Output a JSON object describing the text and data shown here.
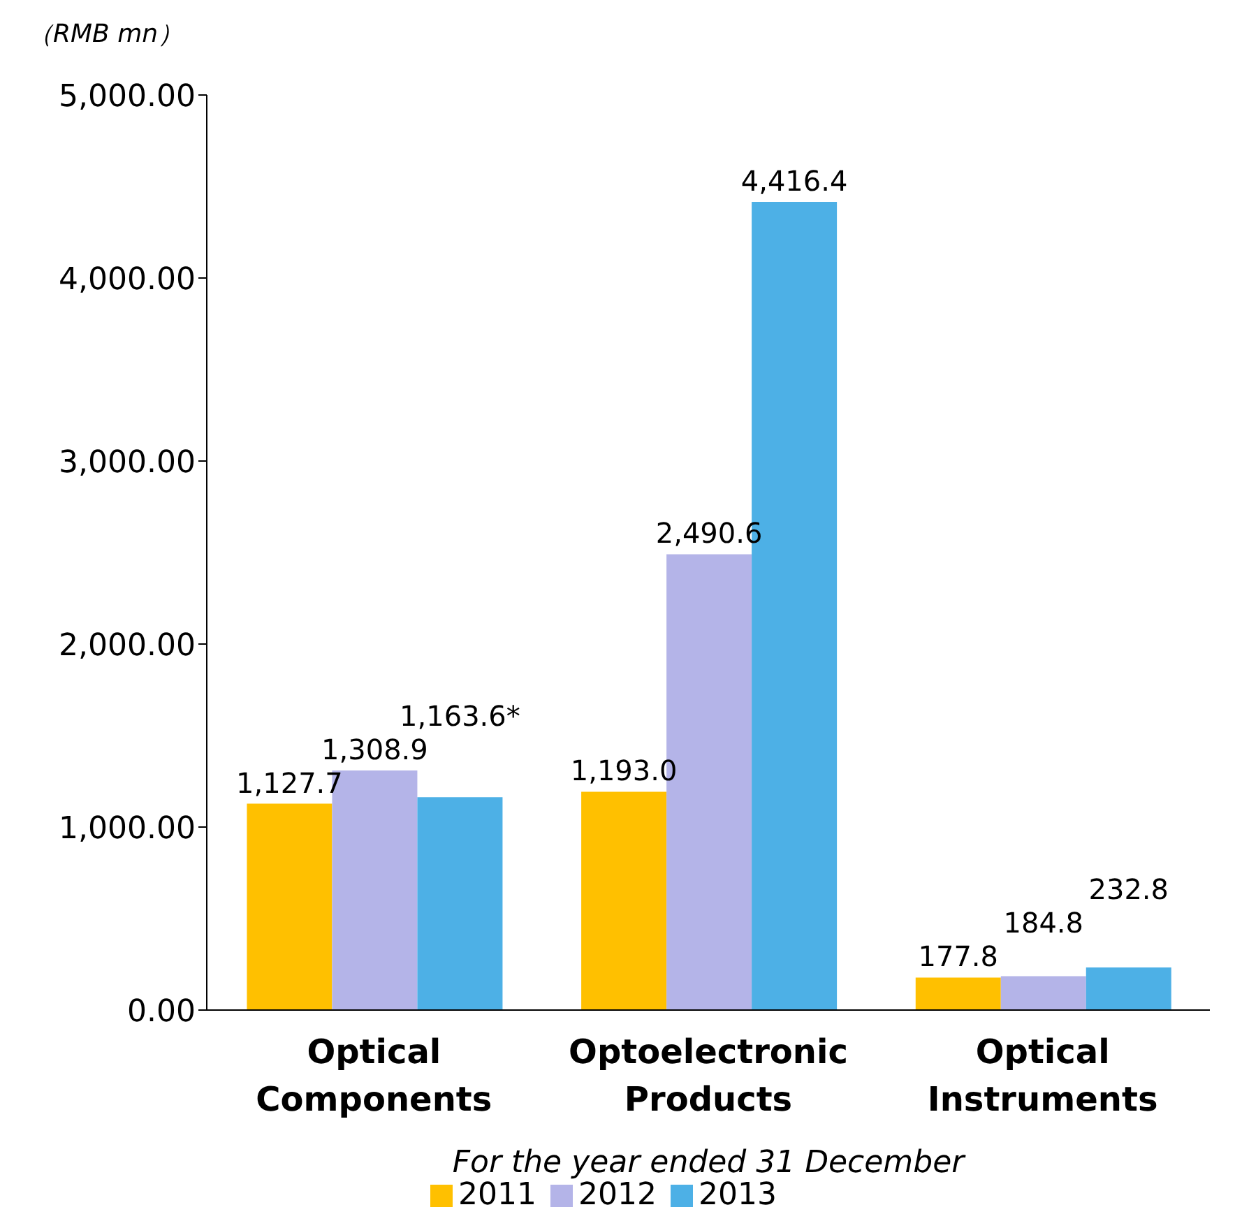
{
  "chart_data": {
    "type": "bar",
    "ylabel": "（RMB mn）",
    "xlabel": "For the year ended 31 December",
    "categories": [
      "Optical Components",
      "Optoelectronic Products",
      "Optical Instruments"
    ],
    "series": [
      {
        "name": "2011",
        "color": "#ffc000",
        "values": [
          1127.7,
          1193.0,
          177.8
        ],
        "value_labels": [
          "1,127.7",
          "1,193.0",
          "177.8"
        ]
      },
      {
        "name": "2012",
        "color": "#b4b4e8",
        "values": [
          1308.9,
          2490.6,
          184.8
        ],
        "value_labels": [
          "1,308.9",
          "2,490.6",
          "184.8"
        ]
      },
      {
        "name": "2013",
        "color": "#4db0e6",
        "values": [
          1163.6,
          4416.4,
          232.8
        ],
        "value_labels": [
          "1,163.6*",
          "4,416.4",
          "232.8"
        ]
      }
    ],
    "ylim": [
      0,
      5000
    ],
    "yticks": [
      {
        "value": 0,
        "label": "0.00"
      },
      {
        "value": 1000,
        "label": "1,000.00"
      },
      {
        "value": 2000,
        "label": "2,000.00"
      },
      {
        "value": 3000,
        "label": "3,000.00"
      },
      {
        "value": 4000,
        "label": "4,000.00"
      },
      {
        "value": 5000,
        "label": "5,000.00"
      }
    ],
    "grid": false,
    "legend": "bottom"
  }
}
